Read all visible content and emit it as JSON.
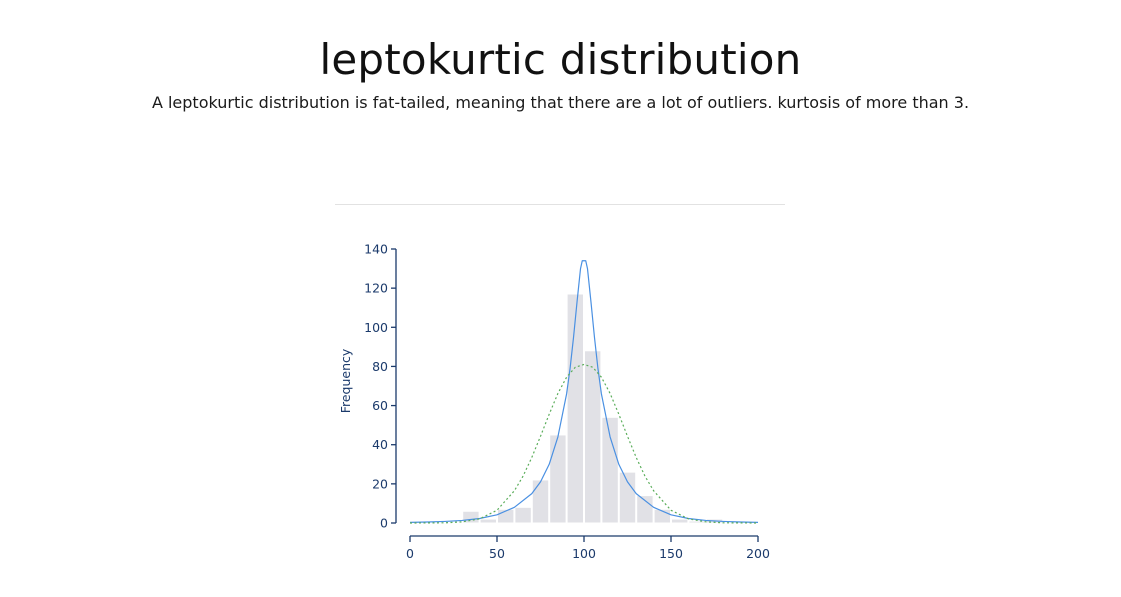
{
  "header": {
    "title": "leptokurtic distribution",
    "subtitle": "A leptokurtic distribution is fat-tailed, meaning that there are a lot of outliers. kurtosis of more than 3."
  },
  "colors": {
    "axis": "#1b3a6b",
    "bars": "#e1e1e6",
    "bar_edge": "#ffffff",
    "fit_curve": "#4a90e2",
    "normal_curve": "#5aad5a"
  },
  "chart_data": {
    "type": "bar",
    "ylabel": "Frequency",
    "xlabel": "",
    "xlim": [
      0,
      200
    ],
    "ylim": [
      0,
      140
    ],
    "x_ticks": [
      0,
      50,
      100,
      150,
      200
    ],
    "y_ticks": [
      0,
      20,
      40,
      60,
      80,
      100,
      120,
      140
    ],
    "bins": [
      {
        "start": 30,
        "end": 40,
        "value": 6
      },
      {
        "start": 40,
        "end": 50,
        "value": 2
      },
      {
        "start": 50,
        "end": 60,
        "value": 7
      },
      {
        "start": 60,
        "end": 70,
        "value": 8
      },
      {
        "start": 70,
        "end": 80,
        "value": 22
      },
      {
        "start": 80,
        "end": 90,
        "value": 45
      },
      {
        "start": 90,
        "end": 100,
        "value": 117
      },
      {
        "start": 100,
        "end": 110,
        "value": 88
      },
      {
        "start": 110,
        "end": 120,
        "value": 54
      },
      {
        "start": 120,
        "end": 130,
        "value": 26
      },
      {
        "start": 130,
        "end": 140,
        "value": 14
      },
      {
        "start": 140,
        "end": 150,
        "value": 7
      },
      {
        "start": 150,
        "end": 160,
        "value": 2
      },
      {
        "start": 160,
        "end": 170,
        "value": 1
      },
      {
        "start": 170,
        "end": 180,
        "value": 2
      }
    ],
    "series": [
      {
        "style": "solid",
        "color": "#4a90e2",
        "x": [
          0,
          10,
          20,
          30,
          40,
          50,
          60,
          70,
          75,
          80,
          85,
          90,
          92,
          94,
          96,
          98,
          99,
          101,
          102,
          104,
          106,
          108,
          110,
          115,
          120,
          125,
          130,
          140,
          150,
          160,
          170,
          180,
          190,
          200
        ],
        "y": [
          0.3,
          0.5,
          0.8,
          1.3,
          2.3,
          4.2,
          8,
          15,
          21,
          30,
          44,
          66,
          79,
          95,
          113,
          130,
          134,
          134,
          130,
          113,
          95,
          79,
          66,
          44,
          30,
          21,
          15,
          8,
          4.2,
          2.3,
          1.3,
          0.8,
          0.5,
          0.3
        ]
      },
      {
        "style": "dotted",
        "color": "#5aad5a",
        "x": [
          0,
          20,
          30,
          40,
          50,
          60,
          65,
          70,
          75,
          80,
          85,
          90,
          95,
          100,
          105,
          110,
          115,
          120,
          125,
          130,
          135,
          140,
          150,
          160,
          170,
          180,
          200
        ],
        "y": [
          0,
          0.1,
          0.6,
          2.1,
          6.5,
          16.5,
          24,
          33.5,
          44.3,
          55.6,
          66.2,
          74.5,
          79.6,
          81,
          79.6,
          74.5,
          66.2,
          55.6,
          44.3,
          33.5,
          24,
          16.5,
          6.5,
          2.1,
          0.6,
          0.1,
          0
        ]
      }
    ]
  }
}
